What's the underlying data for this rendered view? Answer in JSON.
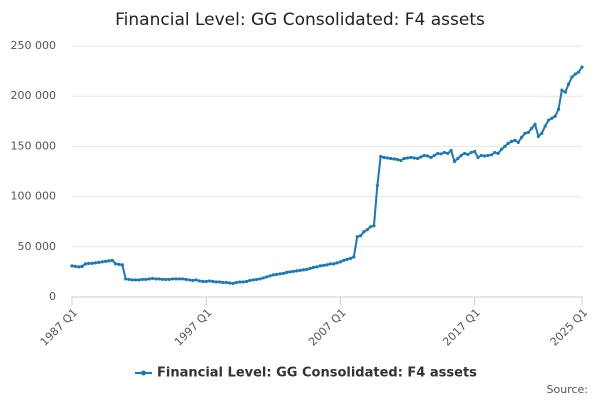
{
  "chart_data": {
    "type": "line",
    "title": "Financial Level: GG Consolidated: F4 assets",
    "source_label": "Source:",
    "categories": [
      "1987 Q1",
      null,
      null,
      null,
      null,
      null,
      null,
      null,
      null,
      null,
      null,
      null,
      null,
      null,
      null,
      null,
      null,
      null,
      null,
      null,
      null,
      null,
      null,
      null,
      null,
      null,
      null,
      null,
      null,
      null,
      null,
      null,
      null,
      null,
      null,
      null,
      null,
      null,
      null,
      null,
      "1997 Q1",
      null,
      null,
      null,
      null,
      null,
      null,
      null,
      null,
      null,
      null,
      null,
      null,
      null,
      null,
      null,
      null,
      null,
      null,
      null,
      null,
      null,
      null,
      null,
      null,
      null,
      null,
      null,
      null,
      null,
      null,
      null,
      null,
      null,
      null,
      null,
      null,
      null,
      null,
      null,
      "2007 Q1",
      null,
      null,
      null,
      null,
      null,
      null,
      null,
      null,
      null,
      null,
      null,
      null,
      null,
      null,
      null,
      null,
      null,
      null,
      null,
      null,
      null,
      null,
      null,
      null,
      null,
      null,
      null,
      null,
      null,
      null,
      null,
      null,
      null,
      null,
      null,
      null,
      null,
      null,
      null,
      "2017 Q1",
      null,
      null,
      null,
      null,
      null,
      null,
      null,
      null,
      null,
      null,
      null,
      null,
      null,
      null,
      null,
      null,
      null,
      null,
      null,
      null,
      null,
      null,
      null,
      null,
      null,
      null,
      null,
      null,
      null,
      null,
      null,
      "2025 Q1"
    ],
    "series": [
      {
        "name": "Financial Level: GG Consolidated: F4 assets",
        "color": "#1a7ab8",
        "values": [
          31000,
          30500,
          30000,
          30500,
          33000,
          33500,
          33500,
          34000,
          34500,
          35000,
          35500,
          36000,
          36500,
          33000,
          32500,
          32000,
          18000,
          17500,
          17000,
          17000,
          17000,
          17500,
          17500,
          18000,
          18500,
          18000,
          18000,
          17500,
          17500,
          17500,
          18000,
          18000,
          18000,
          18000,
          17500,
          17000,
          16500,
          17000,
          16000,
          15500,
          15500,
          16000,
          15500,
          15000,
          15000,
          14500,
          14500,
          14000,
          13500,
          14500,
          15000,
          15000,
          15500,
          16500,
          17000,
          17500,
          18000,
          19000,
          20000,
          21000,
          22000,
          22500,
          23000,
          23500,
          24500,
          25000,
          25500,
          26000,
          26500,
          27000,
          27500,
          28500,
          29500,
          30000,
          31000,
          31500,
          32000,
          33000,
          33000,
          34000,
          35000,
          36500,
          37500,
          38500,
          40000,
          60000,
          61000,
          65000,
          67000,
          70000,
          71000,
          111000,
          140000,
          139000,
          138500,
          138000,
          137500,
          137000,
          136000,
          138000,
          138500,
          139000,
          138500,
          138000,
          139500,
          141000,
          140500,
          139000,
          141000,
          143000,
          142500,
          144000,
          143000,
          146000,
          135000,
          138000,
          141000,
          143000,
          142000,
          144000,
          145000,
          139000,
          141000,
          140500,
          141000,
          141500,
          144000,
          143000,
          147000,
          150000,
          153000,
          155000,
          156000,
          154000,
          159000,
          163000,
          164000,
          168000,
          172000,
          160000,
          163000,
          170000,
          176000,
          178000,
          180000,
          187000,
          206000,
          204000,
          212000,
          219000,
          222000,
          224000,
          229000
        ]
      }
    ],
    "ylim": [
      0,
      250000
    ],
    "yticks": [
      0,
      {
        "value": 50000,
        "label": "50 000"
      },
      {
        "value": 100000,
        "label": "100 000"
      },
      {
        "value": 150000,
        "label": "150 000"
      },
      {
        "value": 200000,
        "label": "200 000"
      },
      {
        "value": 250000,
        "label": "250 000"
      }
    ],
    "grid": true
  }
}
